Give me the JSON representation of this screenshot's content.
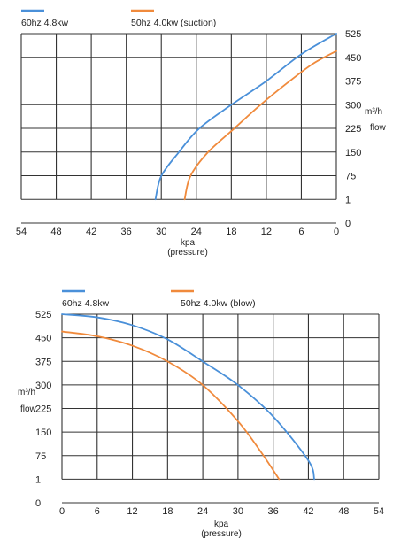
{
  "chart_data": [
    {
      "type": "line",
      "xlabel": "kpa",
      "xlabel2": "(pressure)",
      "ylabel": "m³/h",
      "ylabel2": "flow",
      "x_ticks": [
        "54",
        "48",
        "42",
        "36",
        "30",
        "24",
        "18",
        "12",
        "6",
        "0"
      ],
      "y_ticks": [
        "0",
        "1",
        "75",
        "150",
        "225",
        "300",
        "375",
        "450",
        "525"
      ],
      "xlim": [
        54,
        0
      ],
      "x_reversed": true,
      "y_axis_side": "right",
      "grid": true,
      "legend_placement": "top",
      "series": [
        {
          "name": "60hz 4.8kw",
          "color": "#4a90d9",
          "points": [
            [
              31,
              1
            ],
            [
              30,
              75
            ],
            [
              27,
              150
            ],
            [
              23.5,
              225
            ],
            [
              18,
              300
            ],
            [
              12,
              375
            ],
            [
              6,
              460
            ],
            [
              0,
              525
            ]
          ]
        },
        {
          "name": "50hz  4.0kw  (suction)",
          "color": "#f08a3c",
          "points": [
            [
              26,
              1
            ],
            [
              25,
              75
            ],
            [
              22,
              150
            ],
            [
              17.5,
              225
            ],
            [
              13,
              300
            ],
            [
              8,
              375
            ],
            [
              4,
              430
            ],
            [
              0,
              470
            ]
          ]
        }
      ]
    },
    {
      "type": "line",
      "xlabel": "kpa",
      "xlabel2": "(pressure)",
      "ylabel": "m³/h",
      "ylabel2": "flow",
      "x_ticks": [
        "0",
        "6",
        "12",
        "18",
        "24",
        "30",
        "36",
        "42",
        "48",
        "54"
      ],
      "y_ticks": [
        "0",
        "1",
        "75",
        "150",
        "225",
        "300",
        "375",
        "450",
        "525"
      ],
      "xlim": [
        0,
        54
      ],
      "x_reversed": false,
      "y_axis_side": "left",
      "grid": true,
      "legend_placement": "top",
      "series": [
        {
          "name": "60hz 4.8kw",
          "color": "#4a90d9",
          "points": [
            [
              0,
              525
            ],
            [
              6,
              515
            ],
            [
              12,
              490
            ],
            [
              18,
              445
            ],
            [
              24,
              375
            ],
            [
              30,
              300
            ],
            [
              36,
              200
            ],
            [
              42,
              60
            ],
            [
              43,
              1
            ]
          ]
        },
        {
          "name": "50hz  4.0kw  (blow)",
          "color": "#f08a3c",
          "points": [
            [
              0,
              470
            ],
            [
              6,
              455
            ],
            [
              12,
              425
            ],
            [
              18,
              375
            ],
            [
              24,
              300
            ],
            [
              30,
              185
            ],
            [
              34,
              85
            ],
            [
              37,
              1
            ]
          ]
        }
      ]
    }
  ]
}
